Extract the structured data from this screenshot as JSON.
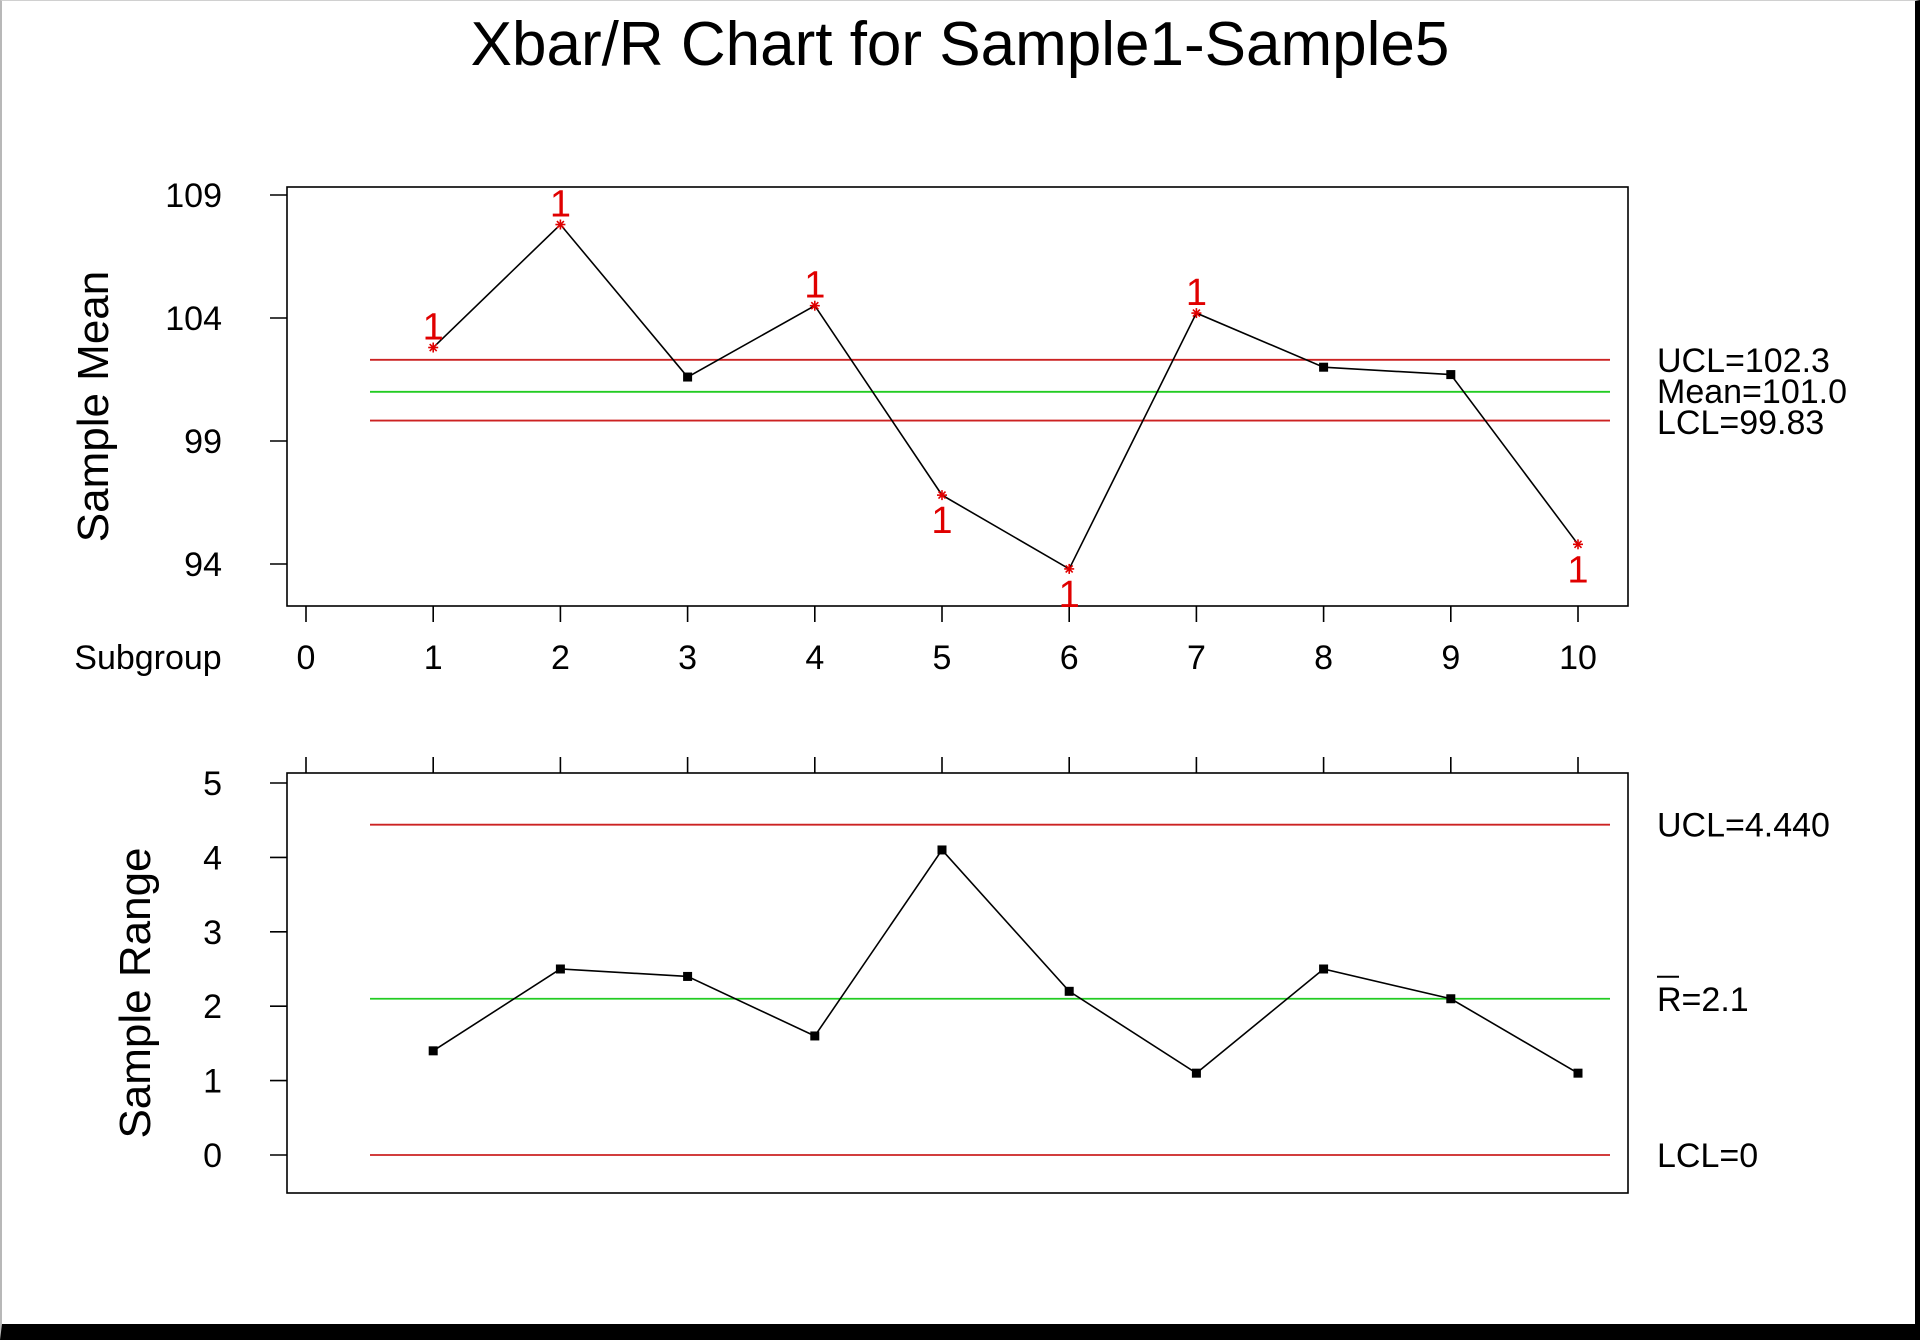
{
  "chart_data": {
    "type": "line",
    "title": "Xbar/R Chart for Sample1-Sample5",
    "subgroup_label": "Subgroup",
    "x_ticks": [
      "0",
      "1",
      "2",
      "3",
      "4",
      "5",
      "6",
      "7",
      "8",
      "9",
      "10"
    ],
    "x": [
      1,
      2,
      3,
      4,
      5,
      6,
      7,
      8,
      9,
      10
    ],
    "xlim": [
      0,
      10
    ],
    "colors": {
      "limit": "#cc2222",
      "center": "#22cc22",
      "line": "#000000",
      "flag": "#e00000"
    },
    "panels": [
      {
        "id": "mean",
        "ylabel": "Sample Mean",
        "y_ticks": [
          "94",
          "99",
          "104",
          "109"
        ],
        "ylim": [
          92.3,
          109.3
        ],
        "values": [
          102.8,
          107.8,
          101.6,
          104.5,
          96.8,
          93.8,
          104.2,
          102.0,
          101.7,
          94.8
        ],
        "flags": [
          "1",
          "1",
          "",
          "1",
          "1",
          "1",
          "1",
          "",
          "",
          "1"
        ],
        "ucl": 102.3,
        "center": 101.0,
        "lcl": 99.83,
        "ucl_label": "UCL=102.3",
        "center_label": "Mean=101.0",
        "lcl_label": "LCL=99.83"
      },
      {
        "id": "range",
        "ylabel": "Sample Range",
        "y_ticks": [
          "0",
          "1",
          "2",
          "3",
          "4",
          "5"
        ],
        "ylim": [
          -0.5,
          5.1
        ],
        "values": [
          1.4,
          2.5,
          2.4,
          1.6,
          4.1,
          2.2,
          1.1,
          2.5,
          2.1,
          1.1
        ],
        "flags": [
          "",
          "",
          "",
          "",
          "",
          "",
          "",
          "",
          "",
          ""
        ],
        "ucl": 4.44,
        "center": 2.1,
        "lcl": 0,
        "ucl_label": "UCL=4.440",
        "center_label": "R=2.1",
        "lcl_label": "LCL=0"
      }
    ]
  }
}
